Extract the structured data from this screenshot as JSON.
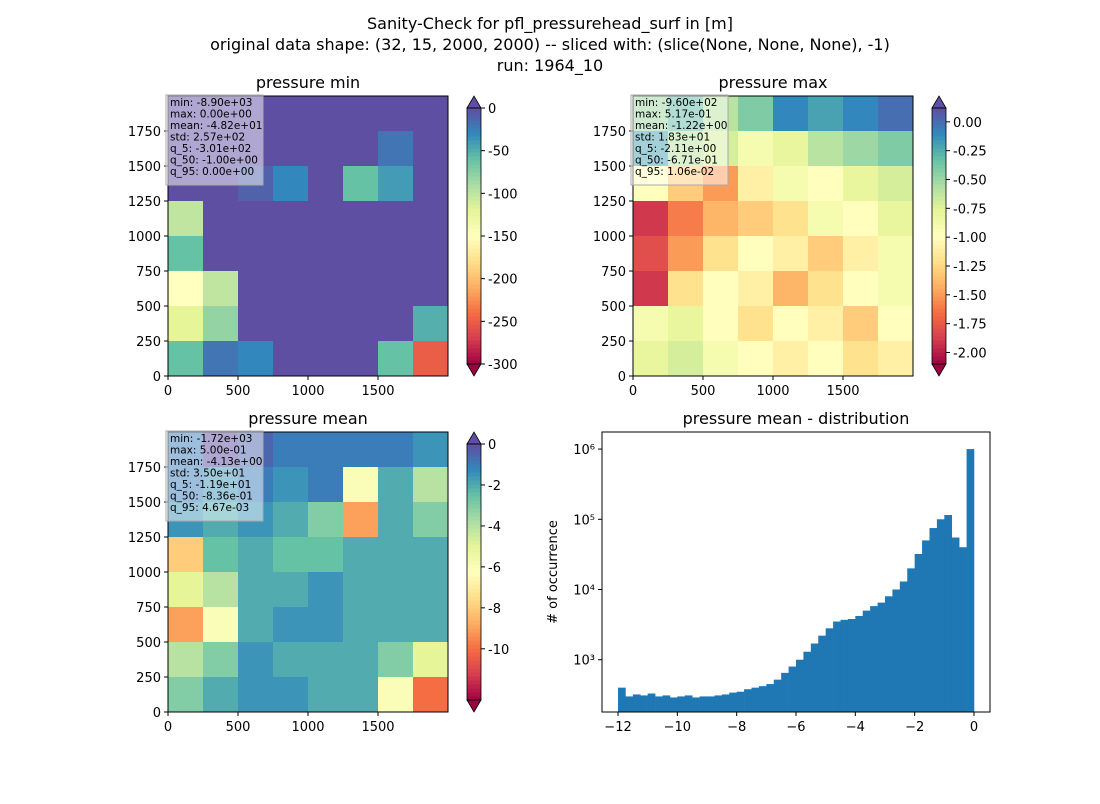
{
  "figure_title": [
    "Sanity-Check for pfl_pressurehead_surf in [m]",
    "original data shape: (32, 15, 2000, 2000) -- sliced with: (slice(None, None, None), -1)",
    "run: 1964_10"
  ],
  "chart_data": [
    {
      "type": "heatmap",
      "title": "pressure min",
      "stats": [
        "min: -8.90e+03",
        "max: 0.00e+00",
        "mean: -4.82e+01",
        "std: 2.57e+02",
        "q_5: -3.01e+02",
        "q_50: -1.00e+00",
        "q_95: 0.00e+00"
      ],
      "xlim": [
        0,
        2000
      ],
      "ylim": [
        0,
        2000
      ],
      "xticks": [
        0,
        500,
        1000,
        1500
      ],
      "yticks": [
        0,
        250,
        500,
        750,
        1000,
        1250,
        1500,
        1750
      ],
      "clim": [
        -300,
        0
      ],
      "cticks": [
        0,
        -50,
        -100,
        -150,
        -200,
        -250,
        -300
      ],
      "colormap": [
        "#9e0142",
        "#d53e4f",
        "#f46d43",
        "#fdae61",
        "#fee08b",
        "#ffffbf",
        "#e6f598",
        "#abdda4",
        "#66c2a5",
        "#3288bd",
        "#5e4fa2"
      ],
      "z": [
        [
          0,
          0,
          0,
          0,
          0,
          0,
          0,
          0
        ],
        [
          0,
          0,
          0,
          0,
          0,
          0,
          -20,
          0
        ],
        [
          0,
          0,
          -10,
          -30,
          0,
          -60,
          -40,
          0
        ],
        [
          -100,
          0,
          0,
          0,
          0,
          0,
          0,
          0
        ],
        [
          -60,
          0,
          0,
          0,
          0,
          0,
          0,
          0
        ],
        [
          -150,
          -100,
          0,
          0,
          0,
          0,
          0,
          0
        ],
        [
          -120,
          -80,
          0,
          0,
          0,
          0,
          0,
          -50
        ],
        [
          -60,
          -20,
          -30,
          0,
          0,
          0,
          -60,
          -250
        ]
      ]
    },
    {
      "type": "heatmap",
      "title": "pressure max",
      "stats": [
        "min: -9.60e+02",
        "max: 5.17e-01",
        "mean: -1.22e+00",
        "std: 1.83e+01",
        "q_5: -2.11e+00",
        "q_50: -6.71e-01",
        "q_95: 1.06e-02"
      ],
      "xlim": [
        0,
        2000
      ],
      "ylim": [
        0,
        2000
      ],
      "xticks": [
        0,
        500,
        1000,
        1500
      ],
      "yticks": [
        0,
        250,
        500,
        750,
        1000,
        1250,
        1500,
        1750
      ],
      "clim": [
        -2.1,
        0.12
      ],
      "cticks": [
        {
          "value": 0,
          "label": "0.00"
        },
        {
          "value": -0.25,
          "label": "-0.25"
        },
        {
          "value": -0.5,
          "label": "-0.50"
        },
        {
          "value": -0.75,
          "label": "-0.75"
        },
        {
          "value": -1,
          "label": "-1.00"
        },
        {
          "value": -1.25,
          "label": "-1.25"
        },
        {
          "value": -1.5,
          "label": "-1.50"
        },
        {
          "value": -1.75,
          "label": "-1.75"
        },
        {
          "value": -2,
          "label": "-2.00"
        }
      ],
      "colormap": [
        "#9e0142",
        "#d53e4f",
        "#f46d43",
        "#fdae61",
        "#fee08b",
        "#ffffbf",
        "#e6f598",
        "#abdda4",
        "#66c2a5",
        "#3288bd",
        "#5e4fa2"
      ],
      "z": [
        [
          -0.5,
          -0.3,
          -0.6,
          -0.4,
          -0.1,
          -0.2,
          -0.1,
          0
        ],
        [
          -0.2,
          -0.6,
          -0.7,
          -0.9,
          -0.8,
          -0.6,
          -0.5,
          -0.4
        ],
        [
          -1.0,
          -1.3,
          -1.5,
          -1.1,
          -0.9,
          -1.0,
          -0.8,
          -0.7
        ],
        [
          -1.9,
          -1.6,
          -1.4,
          -1.3,
          -1.2,
          -0.9,
          -1.0,
          -0.8
        ],
        [
          -1.8,
          -1.5,
          -1.2,
          -1.0,
          -1.1,
          -1.3,
          -1.1,
          -0.9
        ],
        [
          -1.9,
          -1.2,
          -1.0,
          -1.1,
          -1.4,
          -1.2,
          -1.0,
          -0.9
        ],
        [
          -0.9,
          -0.8,
          -1.0,
          -1.2,
          -1.0,
          -1.1,
          -1.3,
          -1.0
        ],
        [
          -0.8,
          -0.7,
          -0.9,
          -1.0,
          -1.1,
          -1.0,
          -1.2,
          -1.1
        ]
      ]
    },
    {
      "type": "heatmap",
      "title": "pressure mean",
      "stats": [
        "min: -1.72e+03",
        "max: 5.00e-01",
        "mean: -4.13e+00",
        "std: 3.50e+01",
        "q_5: -1.19e+01",
        "q_50: -8.36e-01",
        "q_95: 4.67e-03"
      ],
      "xlim": [
        0,
        2000
      ],
      "ylim": [
        0,
        2000
      ],
      "xticks": [
        0,
        500,
        1000,
        1500
      ],
      "yticks": [
        0,
        250,
        500,
        750,
        1000,
        1250,
        1500,
        1750
      ],
      "clim": [
        -12.5,
        0
      ],
      "cticks": [
        0,
        -2,
        -4,
        -6,
        -8,
        -10
      ],
      "colormap": [
        "#9e0142",
        "#d53e4f",
        "#f46d43",
        "#fdae61",
        "#fee08b",
        "#ffffbf",
        "#e6f598",
        "#abdda4",
        "#66c2a5",
        "#3288bd",
        "#5e4fa2"
      ],
      "z": [
        [
          -1,
          0,
          -0.5,
          -1,
          -1,
          -1,
          -1,
          -1.5
        ],
        [
          -1,
          -1.5,
          -1,
          -1.5,
          -1,
          -6,
          -2,
          -4
        ],
        [
          -1.5,
          -2,
          -1.5,
          -2,
          -3,
          -9,
          -2,
          -3
        ],
        [
          -8,
          -2.5,
          -2,
          -2.5,
          -2.5,
          -2,
          -2,
          -2
        ],
        [
          -5,
          -4,
          -2,
          -2,
          -1.5,
          -2,
          -2,
          -2
        ],
        [
          -9,
          -6,
          -2,
          -1.5,
          -1.5,
          -2,
          -2,
          -2
        ],
        [
          -4,
          -3,
          -1.5,
          -2,
          -2,
          -2,
          -3,
          -5
        ],
        [
          -3,
          -2,
          -1.5,
          -1.5,
          -2,
          -2,
          -6,
          -10
        ]
      ]
    },
    {
      "type": "histogram",
      "title": "pressure mean - distribution",
      "ylabel": "# of occurrence",
      "color": "#1f77b4",
      "log_y": true,
      "xlim": [
        -12.54,
        0.54
      ],
      "ylim": [
        180,
        1750000
      ],
      "xticks": [
        {
          "value": -12,
          "label": "−12"
        },
        {
          "value": -10,
          "label": "−10"
        },
        {
          "value": -8,
          "label": "−8"
        },
        {
          "value": -6,
          "label": "−6"
        },
        {
          "value": -4,
          "label": "−4"
        },
        {
          "value": -2,
          "label": "−2"
        },
        0
      ],
      "yticks": [
        {
          "value": 1000,
          "label": "10³"
        },
        {
          "value": 10000,
          "label": "10⁴"
        },
        {
          "value": 100000,
          "label": "10⁵"
        },
        {
          "value": 1000000,
          "label": "10⁶"
        }
      ],
      "bins": [
        -12,
        -11.75,
        -11.5,
        -11.25,
        -11,
        -10.75,
        -10.5,
        -10.25,
        -10,
        -9.75,
        -9.5,
        -9.25,
        -9,
        -8.75,
        -8.5,
        -8.25,
        -8,
        -7.75,
        -7.5,
        -7.25,
        -7,
        -6.75,
        -6.5,
        -6.25,
        -6,
        -5.75,
        -5.5,
        -5.25,
        -5,
        -4.75,
        -4.5,
        -4.25,
        -4,
        -3.75,
        -3.5,
        -3.25,
        -3,
        -2.75,
        -2.5,
        -2.25,
        -2,
        -1.75,
        -1.5,
        -1.25,
        -1,
        -0.75,
        -0.5,
        -0.25,
        0
      ],
      "values": [
        400,
        300,
        320,
        310,
        330,
        300,
        310,
        290,
        300,
        310,
        290,
        300,
        300,
        310,
        320,
        340,
        350,
        380,
        400,
        420,
        450,
        520,
        650,
        800,
        1000,
        1300,
        1700,
        2200,
        2800,
        3500,
        3700,
        3800,
        4200,
        5000,
        5800,
        6500,
        8000,
        10000,
        13000,
        20000,
        32000,
        50000,
        75000,
        100000,
        115000,
        55000,
        40000,
        1000000
      ]
    }
  ]
}
